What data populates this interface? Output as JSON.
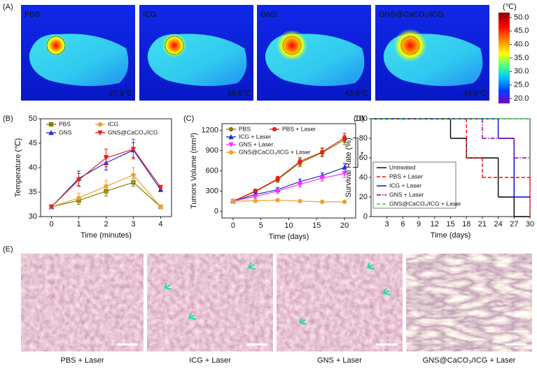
{
  "panel_labels": [
    "(A)",
    "(B)",
    "(C)",
    "(D)",
    "(E)"
  ],
  "panel_a": {
    "images": [
      {
        "label": "PBS",
        "temperature": "37.3℃"
      },
      {
        "label": "ICG",
        "temperature": "38.6℃"
      },
      {
        "label": "GNS",
        "temperature": "43.6℃"
      },
      {
        "label": "GNS@CaCO₃/ICG",
        "temperature": "43.9℃"
      }
    ],
    "colorbar": {
      "unit": "(℃)",
      "lim": [
        20,
        50
      ],
      "ticks": [
        {
          "value": 50,
          "label": "50.0"
        },
        {
          "value": 45,
          "label": "45.0"
        },
        {
          "value": 40,
          "label": "40.0"
        },
        {
          "value": 35,
          "label": "35.0"
        },
        {
          "value": 30,
          "label": "30.0"
        },
        {
          "value": 25,
          "label": "25.0"
        },
        {
          "value": 20,
          "label": "20.0"
        }
      ]
    }
  },
  "chart_data": [
    {
      "type": "line",
      "xlabel": "Time (minutes)",
      "ylabel": "Temperature (℃)",
      "x": [
        0,
        1,
        2,
        3,
        4
      ],
      "xlim": [
        -0.4,
        4.4
      ],
      "xticks": [
        0,
        1,
        2,
        3,
        4
      ],
      "ylim": [
        30,
        50
      ],
      "yticks": [
        30,
        35,
        40,
        45,
        50
      ],
      "legend": "upper-left",
      "series": [
        {
          "name": "PBS",
          "color": "#808000",
          "marker": "square",
          "values": [
            32,
            33.3,
            35.2,
            37,
            32
          ],
          "errors": [
            0.2,
            0.8,
            1,
            0.8,
            0.2
          ]
        },
        {
          "name": "GNS",
          "color": "#2030c8",
          "marker": "triangle",
          "values": [
            32,
            37.8,
            41,
            43.6,
            35.5
          ],
          "errors": [
            0.2,
            1.5,
            1.5,
            1.5,
            0.3
          ]
        },
        {
          "name": "ICG",
          "color": "#f0a030",
          "marker": "circle",
          "values": [
            32,
            33.8,
            36.2,
            38.5,
            32
          ],
          "errors": [
            0.2,
            1,
            1.2,
            1.5,
            0.2
          ]
        },
        {
          "name": "GNS@CaCO₃/ICG",
          "color": "#e8201c",
          "marker": "triangle-down",
          "values": [
            32,
            37.5,
            42,
            43.8,
            36
          ],
          "errors": [
            0.2,
            1.3,
            1.8,
            2,
            0.3
          ]
        }
      ]
    },
    {
      "type": "line",
      "xlabel": "Time (days)",
      "ylabel": "Tumors Volume (mm³)",
      "x": [
        0,
        4,
        8,
        12,
        16,
        20
      ],
      "xlim": [
        -2,
        22
      ],
      "xticks": [
        0,
        5,
        10,
        15,
        20
      ],
      "ylim": [
        -100,
        1300
      ],
      "yticks": [
        0,
        300,
        600,
        900,
        1200
      ],
      "legend": "upper-left",
      "annotation": "*",
      "series": [
        {
          "name": "PBS",
          "color": "#808000",
          "marker": "circle",
          "values": [
            150,
            290,
            470,
            720,
            870,
            1060
          ],
          "errors": [
            10,
            30,
            40,
            60,
            60,
            70
          ]
        },
        {
          "name": "PBS + Laser",
          "color": "#e8201c",
          "marker": "circle",
          "values": [
            150,
            300,
            480,
            740,
            880,
            1090
          ],
          "errors": [
            10,
            30,
            40,
            60,
            60,
            70
          ]
        },
        {
          "name": "ICG + Laser",
          "color": "#2030c8",
          "marker": "triangle",
          "values": [
            150,
            250,
            320,
            440,
            530,
            650
          ],
          "errors": [
            10,
            30,
            30,
            40,
            40,
            60
          ]
        },
        {
          "name": "GNS + Laser",
          "color": "#ff30ff",
          "marker": "triangle-down",
          "values": [
            150,
            220,
            300,
            400,
            490,
            560
          ],
          "errors": [
            10,
            25,
            30,
            40,
            40,
            60
          ]
        },
        {
          "name": "GNS@CaCO₃/ICG + Laser",
          "color": "#f0a030",
          "marker": "circle",
          "values": [
            150,
            155,
            165,
            150,
            140,
            140
          ],
          "errors": [
            10,
            10,
            10,
            10,
            10,
            10
          ]
        }
      ]
    },
    {
      "type": "step",
      "xlabel": "Time (days)",
      "ylabel": "Survival Rate (%)",
      "xlim": [
        0,
        30
      ],
      "xticks": [
        3,
        6,
        9,
        12,
        15,
        18,
        21,
        24,
        27,
        30
      ],
      "ylim": [
        0,
        100
      ],
      "yticks": [
        0,
        20,
        40,
        60,
        80,
        100
      ],
      "legend": "lower-left",
      "series": [
        {
          "name": "Untreated",
          "color": "#000000",
          "dash": "solid",
          "x": [
            0,
            15,
            18,
            24,
            27
          ],
          "values": [
            100,
            80,
            60,
            20,
            0
          ]
        },
        {
          "name": "PBS + Laser",
          "color": "#ff0000",
          "dash": "dashed",
          "x": [
            0,
            18,
            21,
            30
          ],
          "values": [
            100,
            60,
            40,
            0
          ]
        },
        {
          "name": "ICG + Laser",
          "color": "#0000cc",
          "dash": "solid",
          "x": [
            0,
            24,
            27
          ],
          "values": [
            100,
            80,
            20
          ]
        },
        {
          "name": "GNS + Laser",
          "color": "#8000a0",
          "dash": "dashdot",
          "x": [
            0,
            21,
            27
          ],
          "values": [
            100,
            80,
            60
          ]
        },
        {
          "name": "GNS@CaCO₃/ICG + Laser",
          "color": "#30d030",
          "dash": "dashed",
          "x": [
            0
          ],
          "values": [
            100
          ]
        }
      ]
    }
  ],
  "panel_e": {
    "captions": [
      "PBS + Laser",
      "ICG + Laser",
      "GNS + Laser",
      "GNS@CaCO₃/ICG + Laser"
    ]
  }
}
